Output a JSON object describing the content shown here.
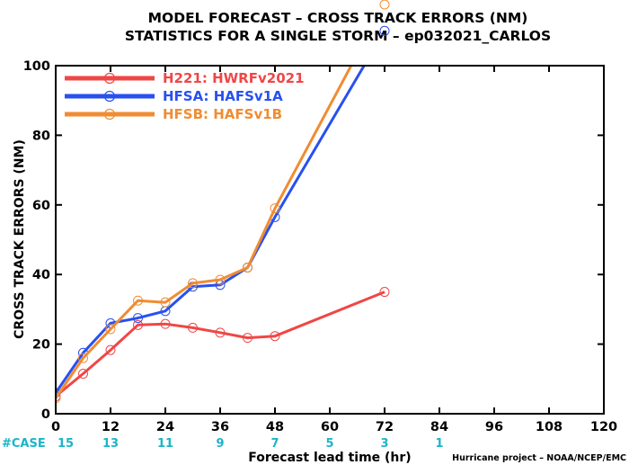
{
  "chart_data": {
    "type": "line",
    "title": "MODEL FORECAST – CROSS TRACK ERRORS (NM)",
    "subtitle": "STATISTICS FOR A SINGLE STORM – ep032021_CARLOS",
    "xlabel": "Forecast lead time (hr)",
    "ylabel": "CROSS TRACK ERRORS (NM)",
    "xlim": [
      0,
      120
    ],
    "ylim": [
      0,
      100
    ],
    "x_ticks": [
      "0",
      "12",
      "24",
      "36",
      "48",
      "60",
      "72",
      "84",
      "96",
      "108",
      "120"
    ],
    "y_ticks": [
      "0",
      "20",
      "40",
      "60",
      "80",
      "100"
    ],
    "legend_position": "top-left",
    "grid": false,
    "series": [
      {
        "name": "H221: HWRFv2021",
        "color": "#f04646",
        "points": [
          [
            0,
            5.0
          ],
          [
            6,
            11.5
          ],
          [
            12,
            18.3
          ],
          [
            18,
            25.5
          ],
          [
            24,
            25.8
          ],
          [
            30,
            24.7
          ],
          [
            36,
            23.3
          ],
          [
            42,
            21.8
          ],
          [
            48,
            22.3
          ],
          [
            72,
            35.0
          ]
        ]
      },
      {
        "name": "HFSA: HAFSv1A",
        "color": "#2850f0",
        "points": [
          [
            0,
            6.0
          ],
          [
            6,
            17.5
          ],
          [
            12,
            26.0
          ],
          [
            18,
            27.5
          ],
          [
            24,
            29.5
          ],
          [
            30,
            36.5
          ],
          [
            36,
            37.0
          ],
          [
            42,
            42.0
          ],
          [
            48,
            56.5
          ],
          [
            72,
            110.0
          ]
        ]
      },
      {
        "name": "HFSB: HAFSv1B",
        "color": "#f08c32",
        "points": [
          [
            0,
            4.5
          ],
          [
            6,
            16.0
          ],
          [
            12,
            24.3
          ],
          [
            18,
            32.5
          ],
          [
            24,
            32.0
          ],
          [
            30,
            37.5
          ],
          [
            36,
            38.5
          ],
          [
            42,
            42.0
          ],
          [
            48,
            59.0
          ],
          [
            72,
            118.0
          ]
        ]
      }
    ],
    "cases": {
      "label": "#CASE",
      "x": [
        0,
        12,
        24,
        36,
        48,
        60,
        72,
        84
      ],
      "values": [
        "15",
        "13",
        "11",
        "9",
        "7",
        "5",
        "3",
        "1"
      ]
    },
    "credit": "Hurricane project – NOAA/NCEP/EMC"
  }
}
